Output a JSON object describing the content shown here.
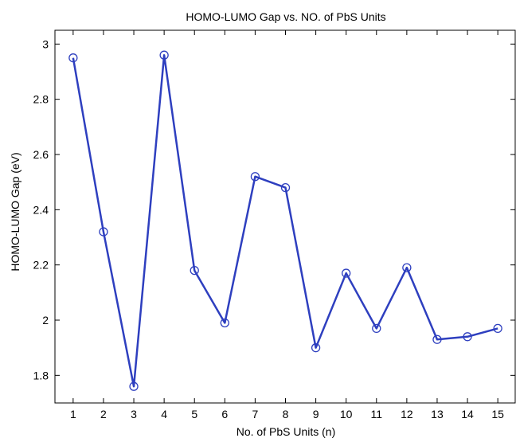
{
  "chart_data": {
    "type": "line",
    "title": "HOMO-LUMO Gap vs. NO. of PbS Units",
    "xlabel": "No. of PbS Units (n)",
    "ylabel": "HOMO-LUMO Gap (eV)",
    "xlim": [
      0.4,
      15.6
    ],
    "ylim": [
      1.7,
      3.05
    ],
    "xticks": [
      1,
      2,
      3,
      4,
      5,
      6,
      7,
      8,
      9,
      10,
      11,
      12,
      13,
      14,
      15
    ],
    "yticks": [
      1.8,
      2,
      2.2,
      2.4,
      2.6,
      2.8,
      3
    ],
    "ytick_labels": [
      "1.8",
      "2",
      "2.2",
      "2.4",
      "2.6",
      "2.8",
      "3"
    ],
    "grid": false,
    "series_color": "#2e3fbf",
    "series": [
      {
        "x": [
          1,
          2,
          3,
          4,
          5,
          6,
          7,
          8,
          9,
          10,
          11,
          12,
          13,
          14,
          15
        ],
        "values": [
          2.95,
          2.32,
          1.76,
          2.96,
          2.18,
          1.99,
          2.52,
          2.48,
          1.9,
          2.17,
          1.97,
          2.19,
          1.93,
          1.94,
          1.97
        ]
      }
    ]
  }
}
